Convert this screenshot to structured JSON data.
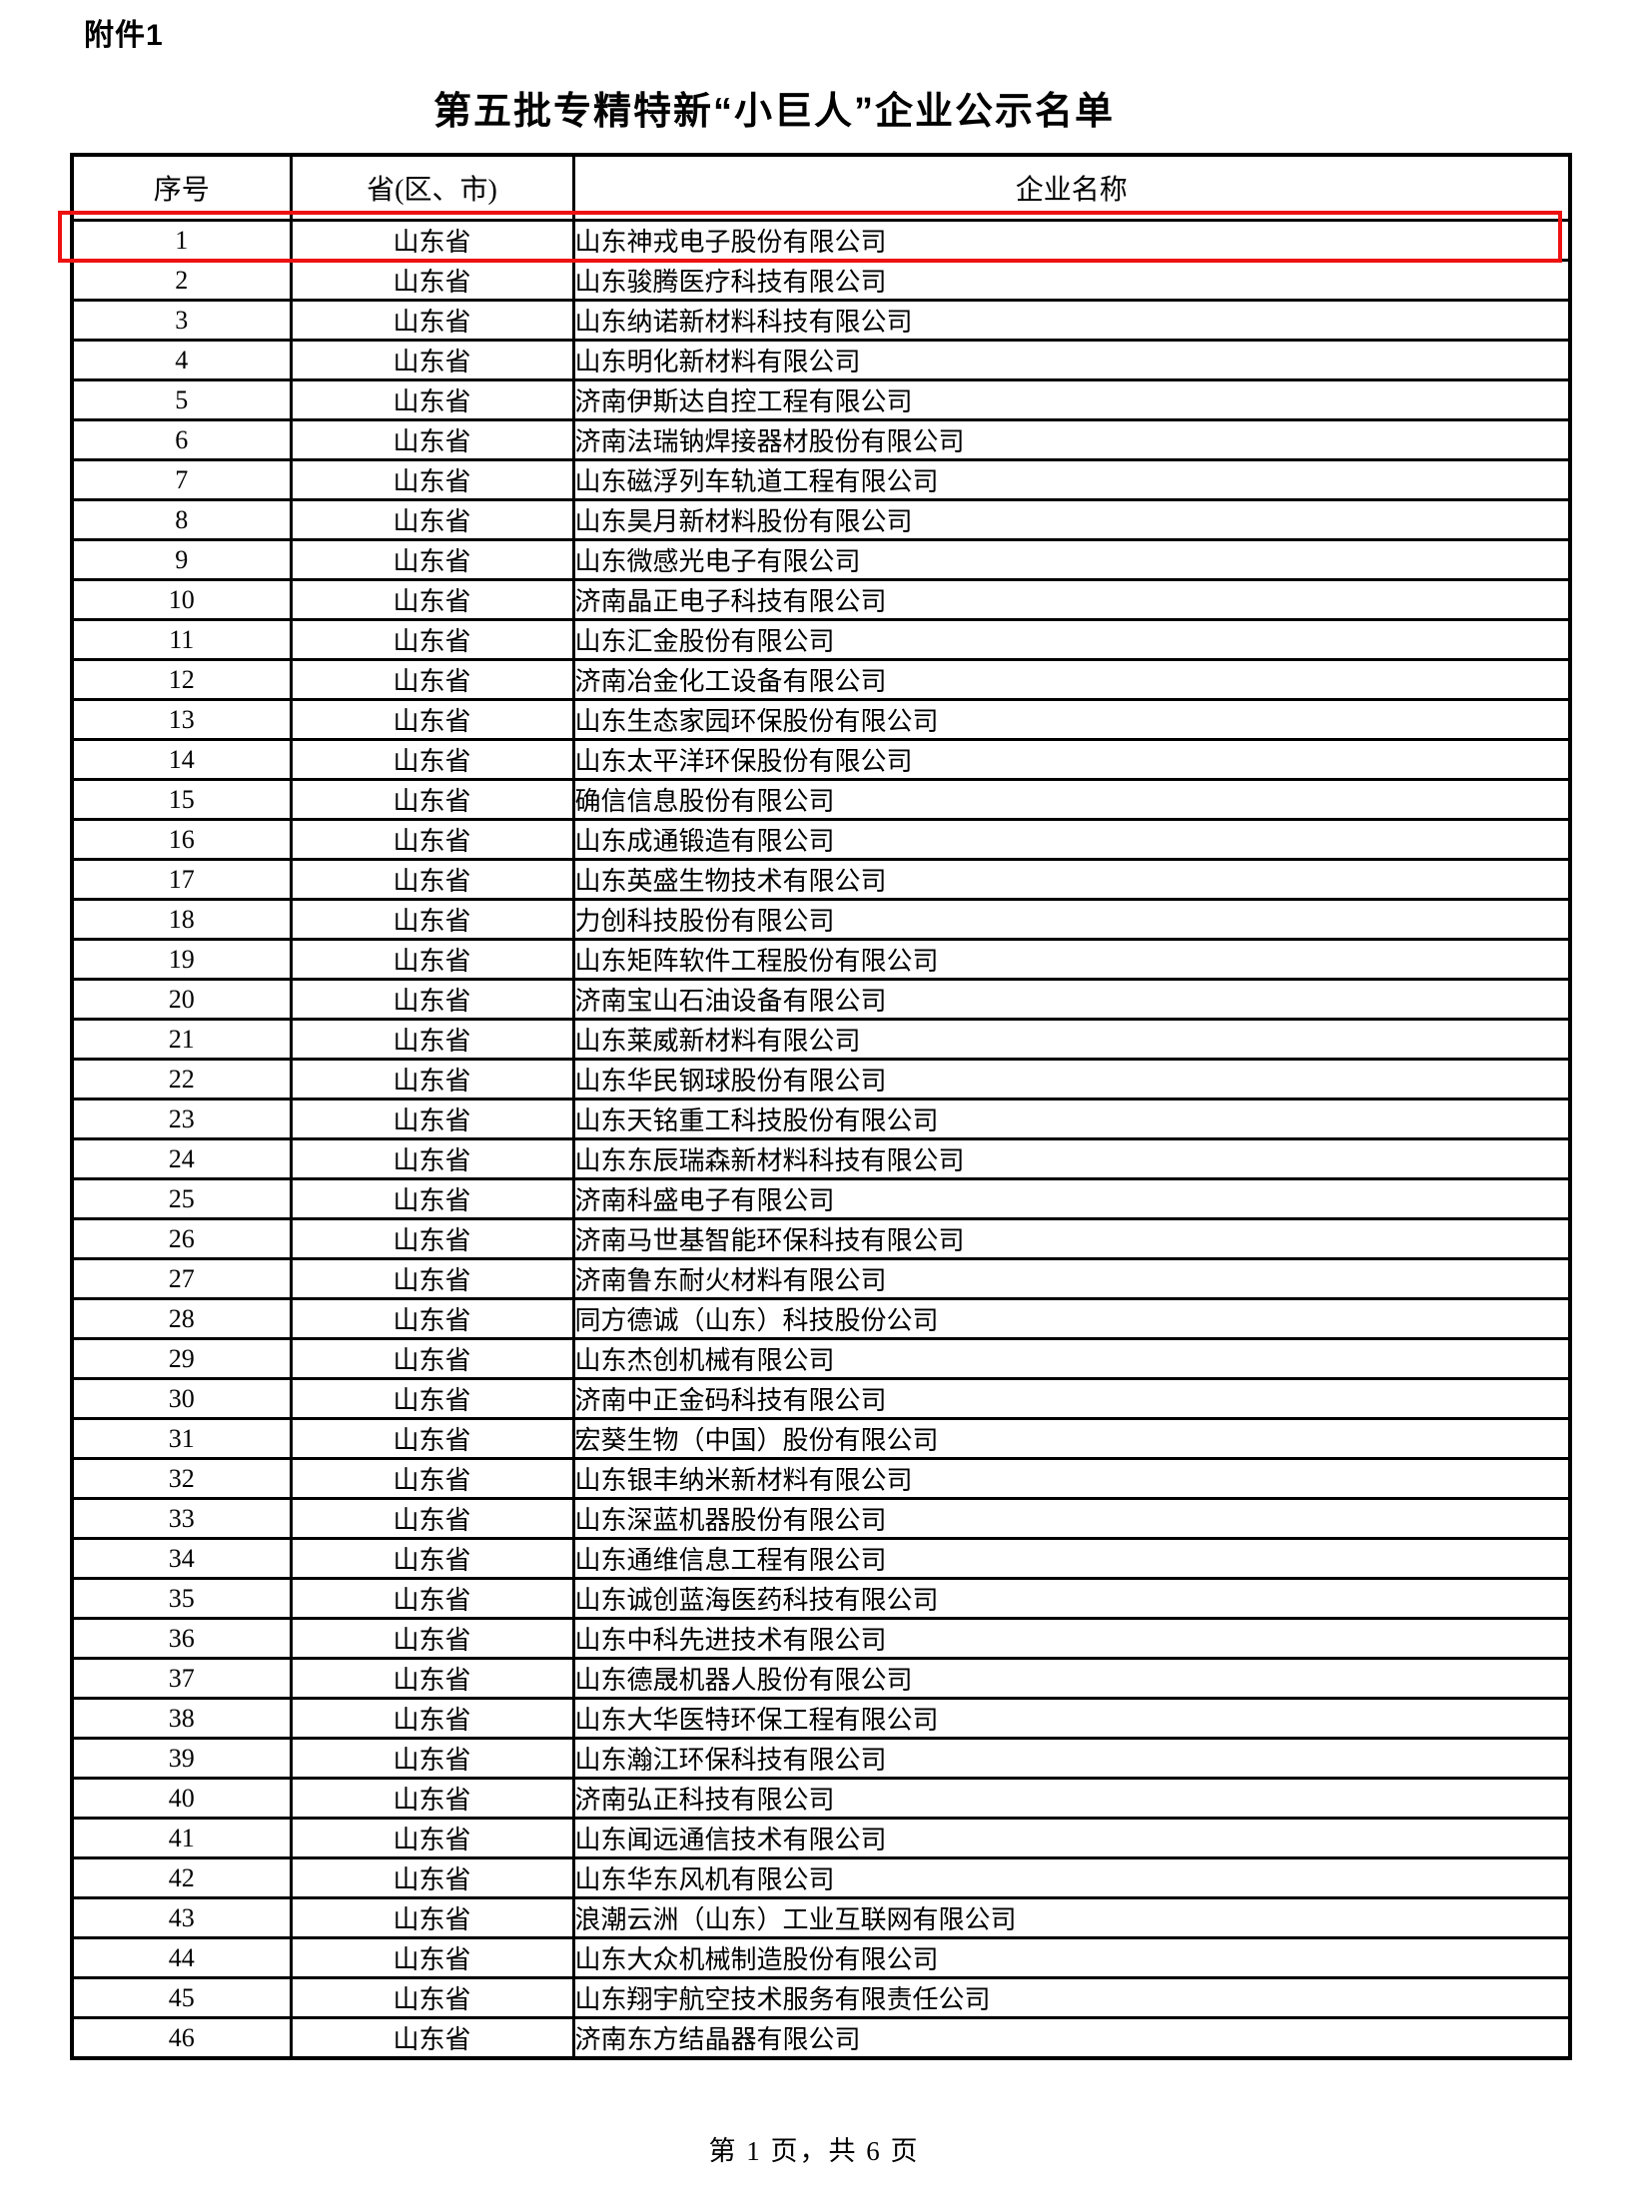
{
  "doc": {
    "attachment_label": "附件1",
    "title": "第五批专精特新“小巨人”企业公示名单",
    "footer": "第 1 页，共 6 页"
  },
  "highlight": {
    "row_number": 1,
    "color": "#ee1111"
  },
  "table": {
    "headers": {
      "no": "序号",
      "province": "省(区、市)",
      "company": "企业名称"
    },
    "rows": [
      {
        "no": "1",
        "province": "山东省",
        "company": "山东神戎电子股份有限公司"
      },
      {
        "no": "2",
        "province": "山东省",
        "company": "山东骏腾医疗科技有限公司"
      },
      {
        "no": "3",
        "province": "山东省",
        "company": "山东纳诺新材料科技有限公司"
      },
      {
        "no": "4",
        "province": "山东省",
        "company": "山东明化新材料有限公司"
      },
      {
        "no": "5",
        "province": "山东省",
        "company": "济南伊斯达自控工程有限公司"
      },
      {
        "no": "6",
        "province": "山东省",
        "company": "济南法瑞钠焊接器材股份有限公司"
      },
      {
        "no": "7",
        "province": "山东省",
        "company": "山东磁浮列车轨道工程有限公司"
      },
      {
        "no": "8",
        "province": "山东省",
        "company": "山东昊月新材料股份有限公司"
      },
      {
        "no": "9",
        "province": "山东省",
        "company": "山东微感光电子有限公司"
      },
      {
        "no": "10",
        "province": "山东省",
        "company": "济南晶正电子科技有限公司"
      },
      {
        "no": "11",
        "province": "山东省",
        "company": "山东汇金股份有限公司"
      },
      {
        "no": "12",
        "province": "山东省",
        "company": "济南冶金化工设备有限公司"
      },
      {
        "no": "13",
        "province": "山东省",
        "company": "山东生态家园环保股份有限公司"
      },
      {
        "no": "14",
        "province": "山东省",
        "company": "山东太平洋环保股份有限公司"
      },
      {
        "no": "15",
        "province": "山东省",
        "company": "确信信息股份有限公司"
      },
      {
        "no": "16",
        "province": "山东省",
        "company": "山东成通锻造有限公司"
      },
      {
        "no": "17",
        "province": "山东省",
        "company": "山东英盛生物技术有限公司"
      },
      {
        "no": "18",
        "province": "山东省",
        "company": "力创科技股份有限公司"
      },
      {
        "no": "19",
        "province": "山东省",
        "company": "山东矩阵软件工程股份有限公司"
      },
      {
        "no": "20",
        "province": "山东省",
        "company": "济南宝山石油设备有限公司"
      },
      {
        "no": "21",
        "province": "山东省",
        "company": "山东莱威新材料有限公司"
      },
      {
        "no": "22",
        "province": "山东省",
        "company": "山东华民钢球股份有限公司"
      },
      {
        "no": "23",
        "province": "山东省",
        "company": "山东天铭重工科技股份有限公司"
      },
      {
        "no": "24",
        "province": "山东省",
        "company": "山东东辰瑞森新材料科技有限公司"
      },
      {
        "no": "25",
        "province": "山东省",
        "company": "济南科盛电子有限公司"
      },
      {
        "no": "26",
        "province": "山东省",
        "company": "济南马世基智能环保科技有限公司"
      },
      {
        "no": "27",
        "province": "山东省",
        "company": "济南鲁东耐火材料有限公司"
      },
      {
        "no": "28",
        "province": "山东省",
        "company": "同方德诚（山东）科技股份公司"
      },
      {
        "no": "29",
        "province": "山东省",
        "company": "山东杰创机械有限公司"
      },
      {
        "no": "30",
        "province": "山东省",
        "company": "济南中正金码科技有限公司"
      },
      {
        "no": "31",
        "province": "山东省",
        "company": "宏葵生物（中国）股份有限公司"
      },
      {
        "no": "32",
        "province": "山东省",
        "company": "山东银丰纳米新材料有限公司"
      },
      {
        "no": "33",
        "province": "山东省",
        "company": "山东深蓝机器股份有限公司"
      },
      {
        "no": "34",
        "province": "山东省",
        "company": "山东通维信息工程有限公司"
      },
      {
        "no": "35",
        "province": "山东省",
        "company": "山东诚创蓝海医药科技有限公司"
      },
      {
        "no": "36",
        "province": "山东省",
        "company": "山东中科先进技术有限公司"
      },
      {
        "no": "37",
        "province": "山东省",
        "company": "山东德晟机器人股份有限公司"
      },
      {
        "no": "38",
        "province": "山东省",
        "company": "山东大华医特环保工程有限公司"
      },
      {
        "no": "39",
        "province": "山东省",
        "company": "山东瀚江环保科技有限公司"
      },
      {
        "no": "40",
        "province": "山东省",
        "company": "济南弘正科技有限公司"
      },
      {
        "no": "41",
        "province": "山东省",
        "company": "山东闻远通信技术有限公司"
      },
      {
        "no": "42",
        "province": "山东省",
        "company": "山东华东风机有限公司"
      },
      {
        "no": "43",
        "province": "山东省",
        "company": "浪潮云洲（山东）工业互联网有限公司"
      },
      {
        "no": "44",
        "province": "山东省",
        "company": "山东大众机械制造股份有限公司"
      },
      {
        "no": "45",
        "province": "山东省",
        "company": "山东翔宇航空技术服务有限责任公司"
      },
      {
        "no": "46",
        "province": "山东省",
        "company": "济南东方结晶器有限公司"
      }
    ]
  }
}
